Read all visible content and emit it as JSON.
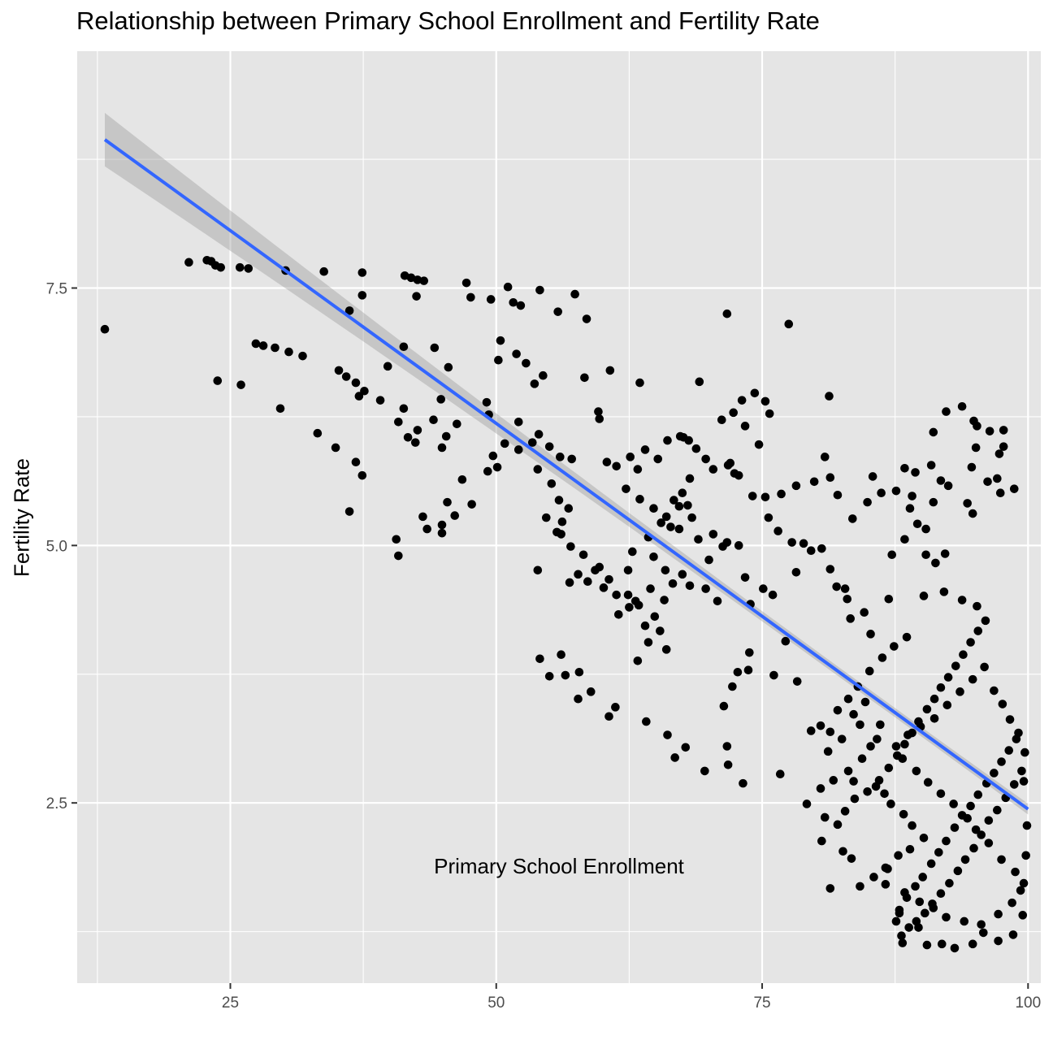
{
  "chart_data": {
    "type": "scatter",
    "title": "Relationship between Primary School Enrollment and Fertility Rate",
    "xlabel": "Primary School Enrollment",
    "ylabel": "Fertility Rate",
    "xlim": [
      10.6,
      101.2
    ],
    "ylim": [
      0.75,
      9.8
    ],
    "x_ticks": [
      25,
      50,
      75,
      100
    ],
    "x_tick_labels": [
      "25",
      "50",
      "75",
      "100"
    ],
    "y_ticks": [
      2.5,
      5.0,
      7.5
    ],
    "y_tick_labels": [
      "2.5",
      "5.0",
      "7.5"
    ],
    "grid": true,
    "legend": "none",
    "colors": {
      "panel": "#e5e5e5",
      "grid": "#ffffff",
      "points": "#000000",
      "trend_line": "#3366ff",
      "confidence_band": "#999999"
    },
    "trend_line": {
      "method": "linear fit",
      "x_range": [
        13.2,
        100
      ],
      "intercept": 9.93,
      "slope": -0.0749,
      "band_halfwidth_at_ends": 0.26
    },
    "points": [
      [
        13.2,
        7.1
      ],
      [
        21.1,
        7.75
      ],
      [
        22.8,
        7.77
      ],
      [
        23.2,
        7.76
      ],
      [
        23.6,
        7.72
      ],
      [
        24.1,
        7.7
      ],
      [
        25.9,
        7.7
      ],
      [
        26.7,
        7.69
      ],
      [
        30.2,
        7.67
      ],
      [
        33.8,
        7.66
      ],
      [
        37.4,
        7.65
      ],
      [
        41.4,
        7.62
      ],
      [
        42.0,
        7.6
      ],
      [
        42.6,
        7.58
      ],
      [
        43.2,
        7.57
      ],
      [
        47.2,
        7.55
      ],
      [
        51.1,
        7.51
      ],
      [
        54.1,
        7.48
      ],
      [
        57.4,
        7.44
      ],
      [
        49.5,
        7.39
      ],
      [
        47.6,
        7.41
      ],
      [
        52.3,
        7.33
      ],
      [
        51.6,
        7.36
      ],
      [
        55.8,
        7.27
      ],
      [
        58.5,
        7.2
      ],
      [
        36.2,
        7.28
      ],
      [
        37.4,
        7.43
      ],
      [
        42.5,
        7.42
      ],
      [
        71.7,
        7.25
      ],
      [
        77.5,
        7.15
      ],
      [
        23.8,
        6.6
      ],
      [
        26.0,
        6.56
      ],
      [
        27.4,
        6.96
      ],
      [
        28.1,
        6.94
      ],
      [
        29.2,
        6.92
      ],
      [
        30.5,
        6.88
      ],
      [
        31.8,
        6.84
      ],
      [
        29.7,
        6.33
      ],
      [
        35.2,
        6.7
      ],
      [
        35.9,
        6.64
      ],
      [
        36.8,
        6.58
      ],
      [
        37.6,
        6.5
      ],
      [
        37.1,
        6.45
      ],
      [
        39.1,
        6.41
      ],
      [
        39.8,
        6.74
      ],
      [
        41.3,
        6.93
      ],
      [
        44.2,
        6.92
      ],
      [
        45.5,
        6.73
      ],
      [
        44.8,
        6.42
      ],
      [
        44.1,
        6.22
      ],
      [
        41.3,
        6.33
      ],
      [
        40.8,
        6.2
      ],
      [
        42.6,
        6.12
      ],
      [
        41.7,
        6.05
      ],
      [
        42.4,
        6.0
      ],
      [
        46.3,
        6.18
      ],
      [
        45.3,
        6.06
      ],
      [
        44.9,
        5.95
      ],
      [
        33.2,
        6.09
      ],
      [
        34.9,
        5.95
      ],
      [
        36.8,
        5.81
      ],
      [
        37.4,
        5.68
      ],
      [
        36.2,
        5.33
      ],
      [
        40.6,
        5.06
      ],
      [
        40.8,
        4.9
      ],
      [
        43.1,
        5.28
      ],
      [
        43.5,
        5.16
      ],
      [
        44.9,
        5.2
      ],
      [
        45.4,
        5.42
      ],
      [
        46.1,
        5.29
      ],
      [
        46.8,
        5.64
      ],
      [
        47.7,
        5.4
      ],
      [
        44.9,
        5.12
      ],
      [
        49.3,
        6.27
      ],
      [
        49.1,
        6.39
      ],
      [
        50.2,
        6.8
      ],
      [
        50.4,
        6.99
      ],
      [
        51.9,
        6.86
      ],
      [
        52.8,
        6.77
      ],
      [
        53.6,
        6.57
      ],
      [
        54.4,
        6.65
      ],
      [
        52.1,
        6.2
      ],
      [
        53.4,
        6.0
      ],
      [
        54.0,
        6.08
      ],
      [
        55.0,
        5.96
      ],
      [
        56.0,
        5.86
      ],
      [
        57.1,
        5.84
      ],
      [
        58.3,
        6.63
      ],
      [
        59.6,
        6.3
      ],
      [
        60.7,
        6.7
      ],
      [
        49.7,
        5.87
      ],
      [
        50.1,
        5.76
      ],
      [
        49.2,
        5.72
      ],
      [
        50.8,
        5.99
      ],
      [
        52.1,
        5.93
      ],
      [
        53.9,
        5.74
      ],
      [
        55.2,
        5.6
      ],
      [
        55.9,
        5.44
      ],
      [
        56.2,
        5.23
      ],
      [
        55.7,
        5.13
      ],
      [
        54.7,
        5.27
      ],
      [
        53.9,
        4.76
      ],
      [
        56.9,
        4.64
      ],
      [
        57.7,
        4.72
      ],
      [
        58.6,
        4.65
      ],
      [
        59.3,
        4.76
      ],
      [
        60.6,
        4.67
      ],
      [
        61.5,
        4.33
      ],
      [
        62.4,
        4.52
      ],
      [
        63.4,
        4.42
      ],
      [
        64.0,
        4.22
      ],
      [
        64.3,
        4.06
      ],
      [
        64.9,
        4.31
      ],
      [
        65.4,
        4.17
      ],
      [
        66.0,
        3.99
      ],
      [
        63.3,
        3.88
      ],
      [
        57.8,
        3.77
      ],
      [
        56.1,
        3.94
      ],
      [
        54.1,
        3.9
      ],
      [
        55.0,
        3.73
      ],
      [
        56.5,
        3.74
      ],
      [
        57.7,
        3.51
      ],
      [
        58.9,
        3.58
      ],
      [
        61.2,
        3.43
      ],
      [
        60.6,
        3.34
      ],
      [
        64.1,
        3.29
      ],
      [
        66.1,
        3.16
      ],
      [
        66.8,
        2.94
      ],
      [
        67.8,
        3.04
      ],
      [
        69.6,
        2.81
      ],
      [
        71.8,
        2.87
      ],
      [
        71.7,
        3.05
      ],
      [
        73.2,
        2.69
      ],
      [
        76.7,
        2.78
      ],
      [
        71.4,
        3.44
      ],
      [
        72.2,
        3.63
      ],
      [
        72.7,
        3.77
      ],
      [
        73.7,
        3.79
      ],
      [
        73.8,
        3.96
      ],
      [
        76.1,
        3.74
      ],
      [
        77.2,
        4.07
      ],
      [
        78.3,
        3.68
      ],
      [
        62.6,
        5.86
      ],
      [
        63.3,
        5.74
      ],
      [
        64.0,
        5.93
      ],
      [
        65.2,
        5.84
      ],
      [
        66.1,
        6.02
      ],
      [
        67.3,
        6.06
      ],
      [
        68.1,
        6.02
      ],
      [
        69.7,
        5.84
      ],
      [
        70.4,
        5.74
      ],
      [
        71.8,
        5.78
      ],
      [
        72.4,
        5.7
      ],
      [
        74.1,
        5.48
      ],
      [
        75.3,
        5.47
      ],
      [
        76.8,
        5.5
      ],
      [
        75.6,
        5.27
      ],
      [
        76.5,
        5.14
      ],
      [
        77.8,
        5.03
      ],
      [
        78.9,
        5.02
      ],
      [
        79.6,
        4.95
      ],
      [
        80.6,
        4.97
      ],
      [
        81.4,
        4.77
      ],
      [
        78.2,
        4.74
      ],
      [
        82.0,
        4.6
      ],
      [
        83.0,
        4.48
      ],
      [
        84.6,
        4.35
      ],
      [
        85.2,
        4.14
      ],
      [
        83.3,
        4.29
      ],
      [
        82.8,
        4.58
      ],
      [
        73.1,
        6.41
      ],
      [
        74.3,
        6.48
      ],
      [
        75.3,
        6.4
      ],
      [
        75.7,
        6.28
      ],
      [
        72.3,
        6.29
      ],
      [
        71.2,
        6.22
      ],
      [
        73.4,
        6.16
      ],
      [
        74.7,
        5.98
      ],
      [
        72.8,
        5.68
      ],
      [
        72.0,
        5.8
      ],
      [
        59.7,
        6.23
      ],
      [
        60.4,
        5.81
      ],
      [
        61.3,
        5.77
      ],
      [
        62.2,
        5.55
      ],
      [
        63.5,
        5.45
      ],
      [
        64.8,
        5.36
      ],
      [
        65.5,
        5.22
      ],
      [
        66.0,
        5.28
      ],
      [
        67.2,
        5.38
      ],
      [
        68.4,
        5.27
      ],
      [
        69.0,
        5.06
      ],
      [
        70.4,
        5.11
      ],
      [
        71.3,
        4.99
      ],
      [
        71.7,
        5.03
      ],
      [
        72.8,
        5.0
      ],
      [
        73.4,
        4.69
      ],
      [
        70.0,
        4.86
      ],
      [
        68.2,
        4.61
      ],
      [
        66.6,
        4.63
      ],
      [
        65.8,
        4.47
      ],
      [
        64.5,
        4.58
      ],
      [
        63.1,
        4.46
      ],
      [
        62.5,
        4.4
      ],
      [
        61.3,
        4.52
      ],
      [
        60.1,
        4.59
      ],
      [
        59.7,
        4.79
      ],
      [
        58.2,
        4.91
      ],
      [
        57.0,
        4.99
      ],
      [
        56.1,
        5.11
      ],
      [
        56.8,
        5.36
      ],
      [
        79.2,
        2.49
      ],
      [
        80.5,
        2.64
      ],
      [
        81.7,
        2.72
      ],
      [
        79.6,
        3.2
      ],
      [
        80.5,
        3.25
      ],
      [
        81.4,
        3.19
      ],
      [
        81.2,
        3.0
      ],
      [
        82.5,
        3.12
      ],
      [
        82.1,
        3.4
      ],
      [
        84.2,
        3.26
      ],
      [
        85.8,
        3.12
      ],
      [
        83.6,
        3.36
      ],
      [
        84.7,
        3.48
      ],
      [
        86.1,
        3.26
      ],
      [
        85.2,
        3.05
      ],
      [
        84.4,
        2.93
      ],
      [
        83.1,
        2.81
      ],
      [
        83.6,
        2.71
      ],
      [
        85.7,
        2.66
      ],
      [
        86.5,
        2.59
      ],
      [
        87.1,
        2.49
      ],
      [
        88.3,
        2.39
      ],
      [
        89.1,
        2.28
      ],
      [
        90.2,
        2.16
      ],
      [
        88.9,
        2.05
      ],
      [
        87.8,
        1.99
      ],
      [
        86.8,
        1.86
      ],
      [
        86.6,
        1.71
      ],
      [
        88.4,
        1.63
      ],
      [
        89.8,
        1.54
      ],
      [
        91.1,
        1.48
      ],
      [
        92.3,
        1.39
      ],
      [
        94.0,
        1.35
      ],
      [
        95.6,
        1.32
      ],
      [
        97.2,
        1.42
      ],
      [
        98.5,
        1.53
      ],
      [
        99.3,
        1.65
      ],
      [
        98.8,
        1.83
      ],
      [
        97.5,
        1.95
      ],
      [
        96.3,
        2.11
      ],
      [
        95.1,
        2.24
      ],
      [
        94.3,
        2.35
      ],
      [
        93.0,
        2.49
      ],
      [
        91.8,
        2.59
      ],
      [
        90.6,
        2.7
      ],
      [
        89.5,
        2.81
      ],
      [
        88.2,
        2.93
      ],
      [
        87.6,
        3.05
      ],
      [
        88.7,
        3.16
      ],
      [
        89.9,
        3.24
      ],
      [
        91.2,
        3.32
      ],
      [
        92.4,
        3.45
      ],
      [
        93.6,
        3.58
      ],
      [
        94.8,
        3.7
      ],
      [
        95.9,
        3.82
      ],
      [
        96.8,
        3.59
      ],
      [
        97.6,
        3.46
      ],
      [
        98.3,
        3.31
      ],
      [
        99.1,
        3.18
      ],
      [
        99.7,
        2.99
      ],
      [
        99.4,
        2.81
      ],
      [
        98.7,
        2.68
      ],
      [
        97.9,
        2.55
      ],
      [
        97.1,
        2.43
      ],
      [
        96.3,
        2.33
      ],
      [
        95.6,
        2.19
      ],
      [
        94.9,
        2.06
      ],
      [
        94.1,
        1.95
      ],
      [
        93.4,
        1.84
      ],
      [
        92.6,
        1.72
      ],
      [
        91.8,
        1.62
      ],
      [
        91.0,
        1.52
      ],
      [
        90.3,
        1.43
      ],
      [
        89.5,
        1.35
      ],
      [
        88.8,
        1.29
      ],
      [
        88.1,
        1.21
      ],
      [
        87.6,
        1.35
      ],
      [
        87.9,
        1.46
      ],
      [
        88.6,
        1.58
      ],
      [
        89.4,
        1.69
      ],
      [
        90.1,
        1.78
      ],
      [
        90.9,
        1.91
      ],
      [
        91.6,
        2.02
      ],
      [
        92.3,
        2.13
      ],
      [
        93.1,
        2.26
      ],
      [
        93.8,
        2.38
      ],
      [
        94.6,
        2.47
      ],
      [
        95.3,
        2.58
      ],
      [
        96.1,
        2.69
      ],
      [
        96.8,
        2.79
      ],
      [
        97.5,
        2.9
      ],
      [
        98.2,
        3.01
      ],
      [
        98.9,
        3.12
      ],
      [
        99.6,
        2.71
      ],
      [
        99.9,
        2.28
      ],
      [
        99.8,
        1.99
      ],
      [
        99.6,
        1.72
      ],
      [
        99.5,
        1.41
      ],
      [
        98.6,
        1.22
      ],
      [
        97.2,
        1.16
      ],
      [
        95.8,
        1.24
      ],
      [
        94.8,
        1.13
      ],
      [
        93.1,
        1.09
      ],
      [
        91.9,
        1.13
      ],
      [
        90.5,
        1.12
      ],
      [
        89.7,
        1.29
      ],
      [
        88.2,
        1.14
      ],
      [
        87.9,
        1.43
      ],
      [
        86.6,
        1.87
      ],
      [
        85.5,
        1.78
      ],
      [
        84.2,
        1.69
      ],
      [
        83.4,
        1.96
      ],
      [
        82.6,
        2.03
      ],
      [
        81.4,
        1.67
      ],
      [
        80.6,
        2.13
      ],
      [
        80.9,
        2.36
      ],
      [
        82.1,
        2.29
      ],
      [
        82.8,
        2.42
      ],
      [
        83.7,
        2.54
      ],
      [
        84.9,
        2.61
      ],
      [
        86.0,
        2.72
      ],
      [
        86.9,
        2.84
      ],
      [
        87.7,
        2.96
      ],
      [
        88.4,
        3.07
      ],
      [
        89.1,
        3.18
      ],
      [
        89.7,
        3.29
      ],
      [
        90.5,
        3.41
      ],
      [
        91.2,
        3.51
      ],
      [
        91.8,
        3.62
      ],
      [
        92.5,
        3.72
      ],
      [
        93.2,
        3.83
      ],
      [
        93.9,
        3.94
      ],
      [
        94.6,
        4.06
      ],
      [
        95.3,
        4.17
      ],
      [
        96.0,
        4.27
      ],
      [
        95.2,
        4.41
      ],
      [
        93.8,
        4.47
      ],
      [
        92.1,
        4.55
      ],
      [
        90.2,
        4.51
      ],
      [
        88.6,
        4.11
      ],
      [
        87.4,
        4.02
      ],
      [
        86.3,
        3.91
      ],
      [
        85.1,
        3.78
      ],
      [
        84.0,
        3.63
      ],
      [
        83.1,
        3.51
      ],
      [
        86.9,
        4.48
      ],
      [
        87.2,
        4.91
      ],
      [
        88.4,
        5.06
      ],
      [
        88.9,
        5.36
      ],
      [
        89.6,
        5.21
      ],
      [
        90.4,
        5.16
      ],
      [
        91.1,
        5.42
      ],
      [
        91.8,
        5.63
      ],
      [
        92.5,
        5.58
      ],
      [
        90.9,
        5.78
      ],
      [
        89.4,
        5.71
      ],
      [
        87.6,
        5.53
      ],
      [
        86.2,
        5.51
      ],
      [
        85.4,
        5.67
      ],
      [
        84.9,
        5.42
      ],
      [
        83.5,
        5.26
      ],
      [
        82.1,
        5.49
      ],
      [
        81.4,
        5.66
      ],
      [
        79.9,
        5.62
      ],
      [
        78.2,
        5.58
      ],
      [
        80.9,
        5.86
      ],
      [
        81.3,
        6.45
      ],
      [
        88.4,
        5.75
      ],
      [
        89.1,
        5.48
      ],
      [
        90.4,
        4.91
      ],
      [
        91.3,
        4.83
      ],
      [
        92.2,
        4.92
      ],
      [
        94.3,
        5.41
      ],
      [
        94.8,
        5.31
      ],
      [
        95.2,
        6.16
      ],
      [
        96.4,
        6.11
      ],
      [
        97.7,
        5.96
      ],
      [
        97.4,
        5.51
      ],
      [
        98.7,
        5.55
      ],
      [
        97.1,
        5.65
      ],
      [
        96.2,
        5.62
      ],
      [
        94.7,
        5.76
      ],
      [
        94.9,
        6.21
      ],
      [
        93.8,
        6.35
      ],
      [
        92.3,
        6.3
      ],
      [
        91.1,
        6.1
      ],
      [
        97.3,
        5.89
      ],
      [
        97.7,
        6.12
      ],
      [
        95.1,
        5.95
      ],
      [
        69.1,
        6.59
      ],
      [
        63.5,
        6.58
      ],
      [
        67.6,
        6.05
      ],
      [
        68.8,
        5.94
      ],
      [
        68.2,
        5.65
      ],
      [
        66.7,
        5.44
      ],
      [
        67.5,
        5.51
      ],
      [
        68.0,
        5.39
      ],
      [
        67.2,
        5.16
      ],
      [
        66.4,
        5.18
      ],
      [
        64.3,
        5.08
      ],
      [
        62.8,
        4.94
      ],
      [
        62.4,
        4.76
      ],
      [
        64.8,
        4.89
      ],
      [
        65.9,
        4.76
      ],
      [
        67.5,
        4.72
      ],
      [
        69.7,
        4.58
      ],
      [
        70.8,
        4.46
      ],
      [
        73.9,
        4.43
      ],
      [
        75.1,
        4.58
      ],
      [
        76.0,
        4.52
      ]
    ]
  }
}
